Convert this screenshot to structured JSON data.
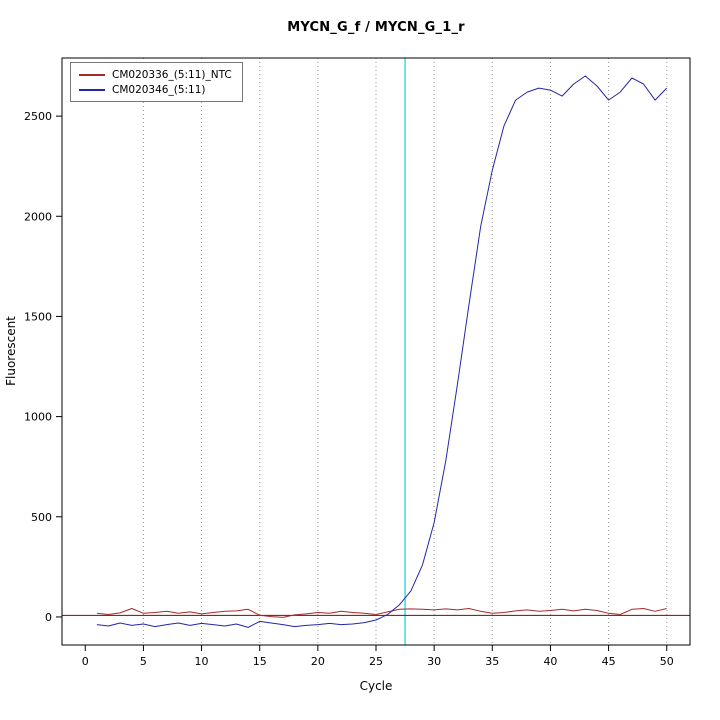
{
  "chart_data": {
    "type": "line",
    "title": "MYCN_G_f / MYCN_G_1_r",
    "xlabel": "Cycle",
    "ylabel": "Fluorescent",
    "xlim": [
      -2,
      52
    ],
    "ylim": [
      -140,
      2790
    ],
    "x_ticks": [
      0,
      5,
      10,
      15,
      20,
      25,
      30,
      35,
      40,
      45,
      50
    ],
    "y_ticks": [
      0,
      500,
      1000,
      1500,
      2000,
      2500
    ],
    "grid_x": [
      5,
      10,
      15,
      20,
      25,
      30,
      35,
      40,
      45,
      50
    ],
    "colors": {
      "grid": "#9a9a9a",
      "axis": "#000000",
      "ntc_red": "#a52a2a",
      "sample_blue": "#2525a8",
      "threshold_red": "#8b0000",
      "ct_cyan": "#00dcdc"
    },
    "threshold_line": {
      "y": 8
    },
    "ct_line": {
      "x": 27.5
    },
    "legend": {
      "position": "top-left",
      "entries": [
        {
          "label": "CM020336_(5:11)_NTC",
          "color": "#a52a2a"
        },
        {
          "label": "CM020346_(5:11)",
          "color": "#2525a8"
        }
      ]
    },
    "x": [
      1,
      2,
      3,
      4,
      5,
      6,
      7,
      8,
      9,
      10,
      11,
      12,
      13,
      14,
      15,
      16,
      17,
      18,
      19,
      20,
      21,
      22,
      23,
      24,
      25,
      26,
      27,
      28,
      29,
      30,
      31,
      32,
      33,
      34,
      35,
      36,
      37,
      38,
      39,
      40,
      41,
      42,
      43,
      44,
      45,
      46,
      47,
      48,
      49,
      50
    ],
    "series": [
      {
        "name": "CM020336_(5:11)_NTC",
        "color": "#a52a2a",
        "values": [
          18,
          12,
          20,
          42,
          18,
          22,
          28,
          18,
          25,
          15,
          22,
          28,
          30,
          38,
          8,
          2,
          -2,
          10,
          15,
          22,
          18,
          28,
          22,
          18,
          12,
          25,
          38,
          40,
          38,
          35,
          40,
          35,
          42,
          28,
          18,
          22,
          30,
          35,
          28,
          32,
          38,
          30,
          38,
          32,
          18,
          12,
          38,
          42,
          28,
          42
        ]
      },
      {
        "name": "CM020346_(5:11)",
        "color": "#2525a8",
        "values": [
          -38,
          -45,
          -30,
          -42,
          -35,
          -48,
          -38,
          -30,
          -42,
          -32,
          -38,
          -45,
          -35,
          -52,
          -22,
          -30,
          -38,
          -48,
          -42,
          -38,
          -32,
          -38,
          -35,
          -28,
          -15,
          12,
          60,
          130,
          260,
          470,
          780,
          1160,
          1560,
          1950,
          2230,
          2450,
          2580,
          2620,
          2640,
          2630,
          2600,
          2660,
          2700,
          2650,
          2580,
          2620,
          2690,
          2660,
          2580,
          2640
        ]
      }
    ]
  }
}
